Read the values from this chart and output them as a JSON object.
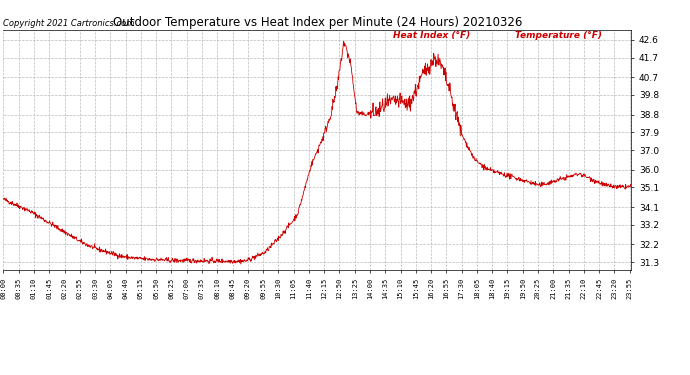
{
  "title": "Outdoor Temperature vs Heat Index per Minute (24 Hours) 20210326",
  "copyright": "Copyright 2021 Cartronics.com",
  "legend_heat": "Heat Index (°F)",
  "legend_temp": "Temperature (°F)",
  "line_color": "#cc0000",
  "legend_heat_color": "#cc0000",
  "legend_temp_color": "#cc0000",
  "background_color": "#ffffff",
  "grid_color": "#bbbbbb",
  "title_color": "#000000",
  "copyright_color": "#000000",
  "yticks": [
    31.3,
    32.2,
    33.2,
    34.1,
    35.1,
    36.0,
    37.0,
    37.9,
    38.8,
    39.8,
    40.7,
    41.7,
    42.6
  ],
  "ylim": [
    30.9,
    43.1
  ],
  "num_minutes": 1440,
  "x_tick_interval": 35,
  "ctrl_hours": [
    0,
    0.5,
    1.0,
    1.5,
    2.0,
    2.5,
    3.0,
    3.5,
    4.0,
    4.5,
    5.0,
    5.5,
    6.0,
    6.25,
    6.5,
    7.0,
    7.5,
    8.0,
    8.5,
    9.0,
    9.25,
    9.5,
    10.0,
    10.5,
    11.0,
    11.25,
    11.5,
    11.75,
    12.0,
    12.25,
    12.5,
    12.75,
    13.0,
    13.25,
    13.5,
    13.75,
    14.0,
    14.25,
    14.5,
    14.75,
    15.0,
    15.25,
    15.5,
    15.75,
    16.0,
    16.25,
    16.5,
    16.75,
    17.0,
    17.25,
    17.5,
    18.0,
    18.5,
    19.0,
    19.5,
    20.0,
    20.5,
    21.0,
    21.5,
    22.0,
    22.5,
    23.0,
    23.5,
    24.0
  ],
  "ctrl_temps": [
    34.5,
    34.2,
    33.9,
    33.5,
    33.1,
    32.7,
    32.3,
    32.0,
    31.8,
    31.6,
    31.5,
    31.45,
    31.42,
    31.4,
    31.38,
    31.38,
    31.37,
    31.36,
    31.35,
    31.35,
    31.36,
    31.5,
    31.8,
    32.5,
    33.3,
    33.8,
    35.0,
    36.2,
    37.0,
    37.8,
    38.8,
    40.2,
    42.5,
    41.5,
    38.9,
    38.8,
    38.85,
    38.9,
    39.2,
    39.4,
    39.5,
    39.4,
    39.3,
    40.0,
    40.8,
    41.3,
    41.7,
    41.2,
    40.2,
    39.0,
    37.8,
    36.5,
    36.0,
    35.8,
    35.6,
    35.4,
    35.2,
    35.4,
    35.6,
    35.8,
    35.5,
    35.2,
    35.1,
    35.15
  ],
  "noise_seeds": [
    42
  ],
  "noise_base": 0.06,
  "noise_peak1_range": [
    12.0,
    13.5
  ],
  "noise_peak1_mult": 2.0,
  "noise_peak2_range": [
    14.0,
    17.5
  ],
  "noise_peak2_mult": 3.5
}
